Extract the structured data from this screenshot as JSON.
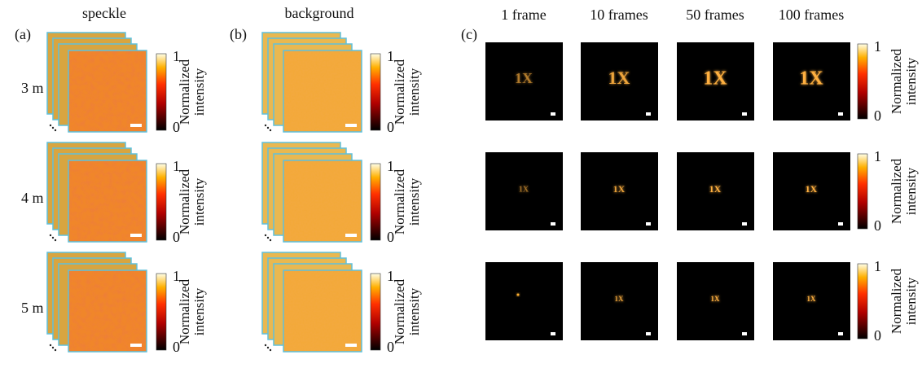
{
  "panels": [
    {
      "label": "(a)",
      "title": "speckle"
    },
    {
      "label": "(b)",
      "title": "background"
    },
    {
      "label": "(c)"
    }
  ],
  "rows": [
    "3 m",
    "4 m",
    "5 m"
  ],
  "frames": [
    "1 frame",
    "10 frames",
    "50 frames",
    "100 frames"
  ],
  "colorbar": {
    "label_lines": [
      "Normalized",
      "intensity"
    ],
    "max": 1,
    "min": 0
  },
  "target_text": "1X"
}
